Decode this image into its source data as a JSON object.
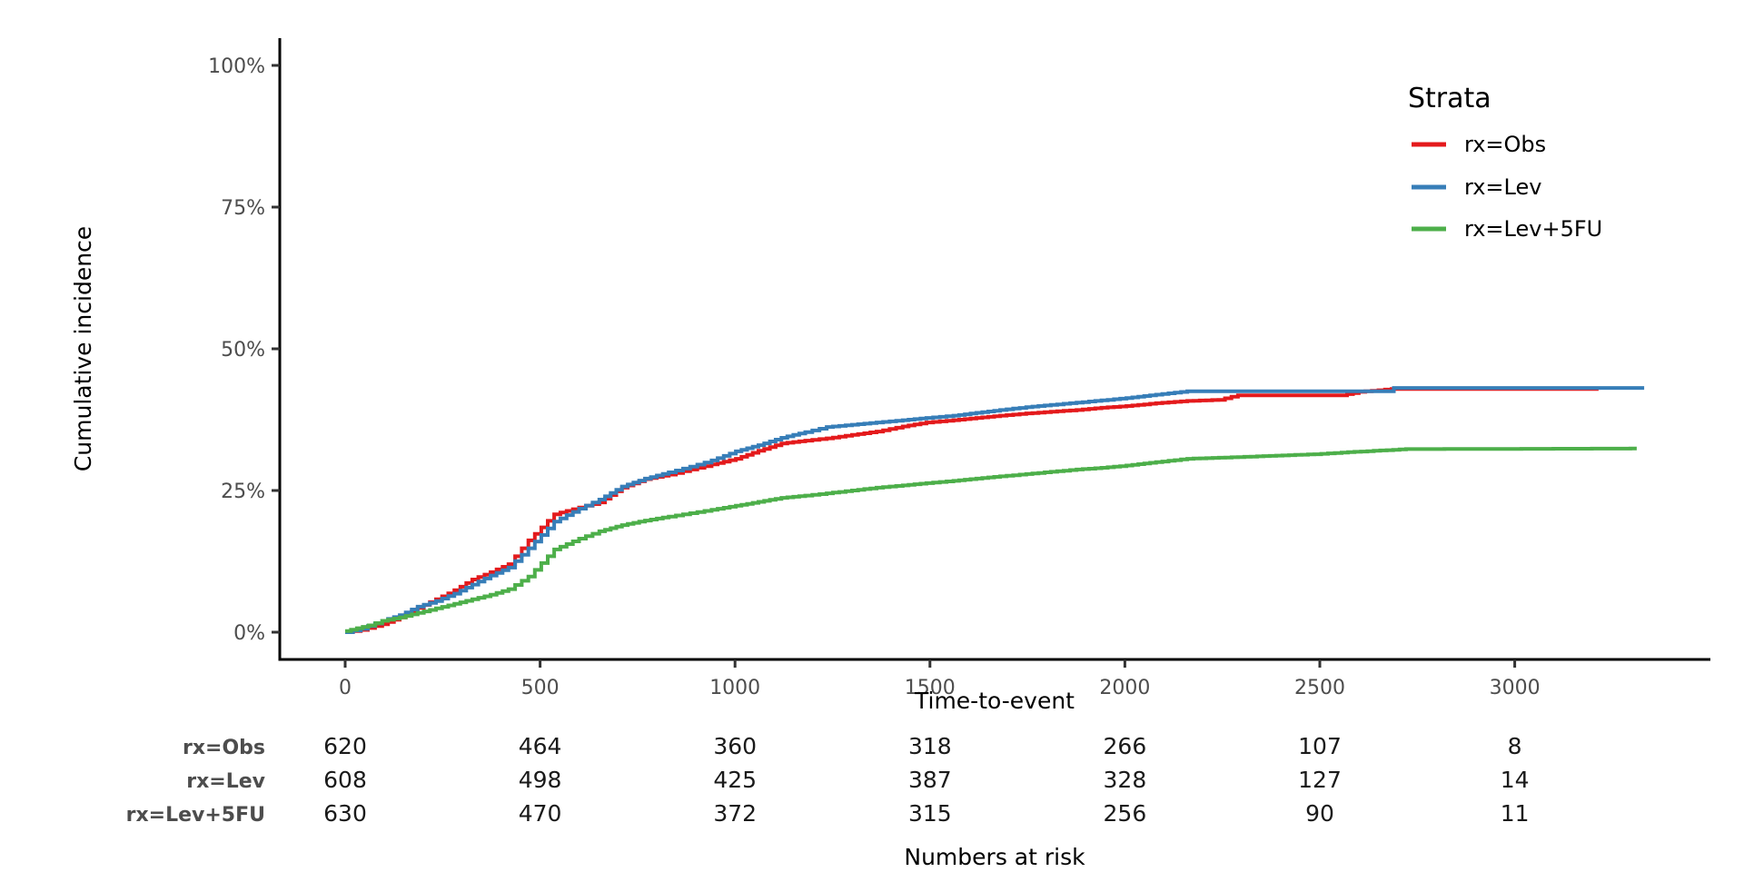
{
  "chart_data": {
    "type": "line",
    "subtype": "cumulative-incidence-step-curves",
    "title": "",
    "xlabel": "Time-to-event",
    "ylabel": "Cumulative incidence",
    "xlim": [
      -168,
      3502
    ],
    "ylim": [
      0,
      100
    ],
    "grid": false,
    "x_ticks": [
      0,
      500,
      1000,
      1500,
      2000,
      2500,
      3000
    ],
    "y_ticks": [
      {
        "value": 0,
        "label": "0%"
      },
      {
        "value": 25,
        "label": "25%"
      },
      {
        "value": 50,
        "label": "50%"
      },
      {
        "value": 75,
        "label": "75%"
      },
      {
        "value": 100,
        "label": "100%"
      }
    ],
    "legend_title": "Strata",
    "legend_position": "right-top",
    "series": [
      {
        "name": "rx=Obs",
        "color": "#E41A1C",
        "points": [
          [
            0,
            0
          ],
          [
            40,
            0.4
          ],
          [
            95,
            1.4
          ],
          [
            140,
            2.6
          ],
          [
            186,
            4.3
          ],
          [
            233,
            5.8
          ],
          [
            280,
            7.4
          ],
          [
            326,
            9.3
          ],
          [
            373,
            10.6
          ],
          [
            419,
            12.0
          ],
          [
            470,
            16.2
          ],
          [
            536,
            20.8
          ],
          [
            600,
            22.0
          ],
          [
            652,
            22.9
          ],
          [
            710,
            25.5
          ],
          [
            769,
            27.0
          ],
          [
            830,
            27.8
          ],
          [
            885,
            28.7
          ],
          [
            940,
            29.6
          ],
          [
            1002,
            30.6
          ],
          [
            1060,
            32.0
          ],
          [
            1119,
            33.3
          ],
          [
            1180,
            33.8
          ],
          [
            1235,
            34.2
          ],
          [
            1300,
            34.8
          ],
          [
            1363,
            35.4
          ],
          [
            1430,
            36.3
          ],
          [
            1491,
            37.0
          ],
          [
            1560,
            37.4
          ],
          [
            1619,
            37.8
          ],
          [
            1680,
            38.2
          ],
          [
            1747,
            38.6
          ],
          [
            1810,
            38.9
          ],
          [
            1876,
            39.2
          ],
          [
            1940,
            39.6
          ],
          [
            2004,
            39.9
          ],
          [
            2080,
            40.4
          ],
          [
            2160,
            40.8
          ],
          [
            2240,
            41.0
          ],
          [
            2290,
            41.8
          ],
          [
            2555,
            41.8
          ],
          [
            2600,
            42.4
          ],
          [
            2684,
            42.9
          ],
          [
            3215,
            42.9
          ]
        ]
      },
      {
        "name": "rx=Lev",
        "color": "#377EB8",
        "points": [
          [
            0,
            0
          ],
          [
            40,
            0.6
          ],
          [
            95,
            2.0
          ],
          [
            140,
            3.0
          ],
          [
            186,
            4.5
          ],
          [
            233,
            5.5
          ],
          [
            280,
            6.8
          ],
          [
            326,
            8.4
          ],
          [
            373,
            10.0
          ],
          [
            419,
            11.4
          ],
          [
            470,
            14.8
          ],
          [
            536,
            19.5
          ],
          [
            600,
            21.8
          ],
          [
            652,
            23.4
          ],
          [
            710,
            25.7
          ],
          [
            769,
            27.1
          ],
          [
            830,
            28.2
          ],
          [
            885,
            29.2
          ],
          [
            940,
            30.3
          ],
          [
            1002,
            31.9
          ],
          [
            1060,
            33.0
          ],
          [
            1119,
            34.3
          ],
          [
            1180,
            35.3
          ],
          [
            1235,
            36.2
          ],
          [
            1300,
            36.6
          ],
          [
            1363,
            37.0
          ],
          [
            1430,
            37.4
          ],
          [
            1491,
            37.8
          ],
          [
            1560,
            38.2
          ],
          [
            1619,
            38.7
          ],
          [
            1680,
            39.2
          ],
          [
            1747,
            39.7
          ],
          [
            1810,
            40.1
          ],
          [
            1876,
            40.5
          ],
          [
            1940,
            40.9
          ],
          [
            2004,
            41.3
          ],
          [
            2080,
            41.9
          ],
          [
            2160,
            42.5
          ],
          [
            2680,
            42.5
          ],
          [
            2690,
            43.1
          ],
          [
            3332,
            43.1
          ]
        ]
      },
      {
        "name": "rx=Lev+5FU",
        "color": "#4DAF4A",
        "points": [
          [
            0,
            0.2
          ],
          [
            60,
            1.2
          ],
          [
            95,
            2.0
          ],
          [
            140,
            2.6
          ],
          [
            186,
            3.4
          ],
          [
            233,
            4.2
          ],
          [
            280,
            5.0
          ],
          [
            326,
            5.8
          ],
          [
            373,
            6.6
          ],
          [
            419,
            7.6
          ],
          [
            470,
            9.8
          ],
          [
            536,
            14.6
          ],
          [
            600,
            16.5
          ],
          [
            652,
            17.8
          ],
          [
            710,
            18.9
          ],
          [
            769,
            19.7
          ],
          [
            830,
            20.4
          ],
          [
            885,
            21.0
          ],
          [
            940,
            21.6
          ],
          [
            1002,
            22.3
          ],
          [
            1060,
            23.0
          ],
          [
            1119,
            23.7
          ],
          [
            1180,
            24.1
          ],
          [
            1235,
            24.5
          ],
          [
            1300,
            25.0
          ],
          [
            1363,
            25.5
          ],
          [
            1430,
            25.9
          ],
          [
            1491,
            26.3
          ],
          [
            1560,
            26.7
          ],
          [
            1619,
            27.1
          ],
          [
            1680,
            27.5
          ],
          [
            1747,
            27.9
          ],
          [
            1810,
            28.3
          ],
          [
            1876,
            28.7
          ],
          [
            1940,
            29.0
          ],
          [
            2004,
            29.4
          ],
          [
            2080,
            30.0
          ],
          [
            2160,
            30.6
          ],
          [
            2290,
            30.9
          ],
          [
            2486,
            31.4
          ],
          [
            2556,
            31.7
          ],
          [
            2721,
            32.3
          ],
          [
            3313,
            32.4
          ]
        ]
      }
    ],
    "risk_table": {
      "caption": "Numbers at risk",
      "times": [
        0,
        500,
        1000,
        1500,
        2000,
        2500,
        3000
      ],
      "rows": [
        {
          "label": "rx=Obs",
          "values": [
            620,
            464,
            360,
            318,
            266,
            107,
            8
          ]
        },
        {
          "label": "rx=Lev",
          "values": [
            608,
            498,
            425,
            387,
            328,
            127,
            14
          ]
        },
        {
          "label": "rx=Lev+5FU",
          "values": [
            630,
            470,
            372,
            315,
            256,
            90,
            11
          ]
        }
      ]
    },
    "colors": {
      "axis_line": "#000000",
      "tick_mark": "#333333",
      "tick_label": "#4d4d4d",
      "background": "#ffffff"
    }
  }
}
